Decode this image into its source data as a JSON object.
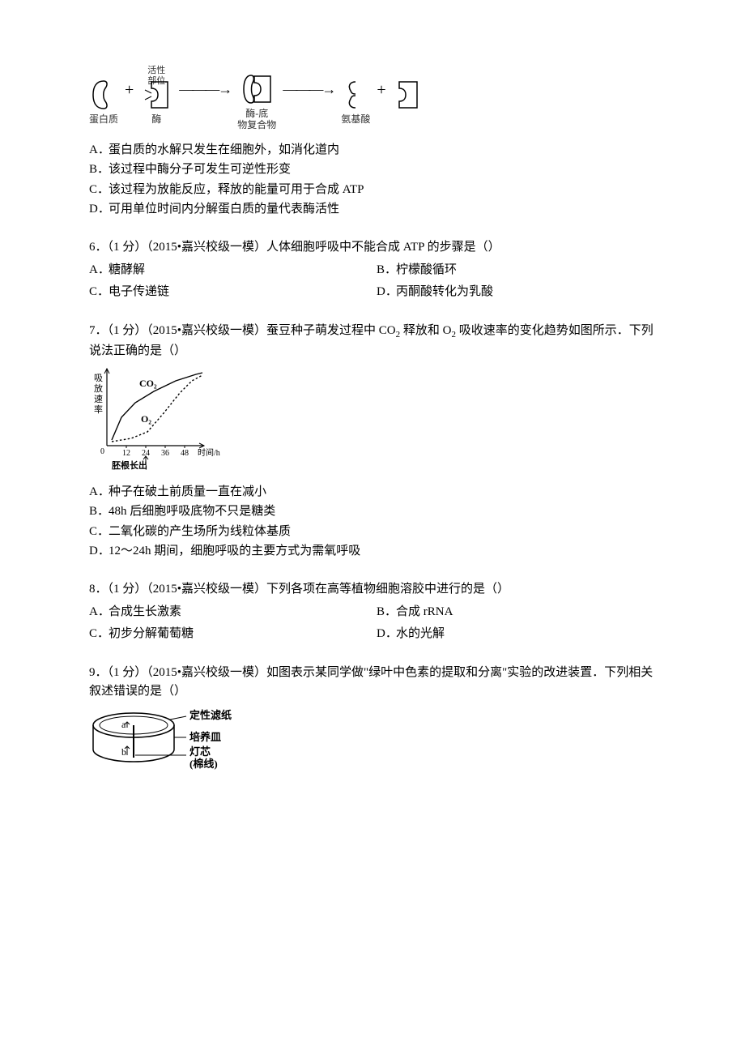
{
  "q5": {
    "diagram": {
      "protein_label": "蛋白质",
      "active_site": "活性\n部位",
      "enzyme_label": "酶",
      "complex_label": "酶-底\n物复合物",
      "aa_label": "氨基酸",
      "plus": "+",
      "arrow": "→"
    },
    "A": {
      "letter": "A．",
      "text": "蛋白质的水解只发生在细胞外，如消化道内"
    },
    "B": {
      "letter": "B．",
      "text": "该过程中酶分子可发生可逆性形变"
    },
    "C": {
      "letter": "C．",
      "text": "该过程为放能反应，释放的能量可用于合成 ATP"
    },
    "D": {
      "letter": "D．",
      "text": "可用单位时间内分解蛋白质的量代表酶活性"
    }
  },
  "q6": {
    "text": "6．（1 分）（2015•嘉兴校级一模）人体细胞呼吸中不能合成 ATP 的步骤是（）",
    "A": {
      "letter": "A．",
      "text": "糖酵解"
    },
    "B": {
      "letter": "B．",
      "text": "柠檬酸循环"
    },
    "C": {
      "letter": "C．",
      "text": "电子传递链"
    },
    "D": {
      "letter": "D．",
      "text": "丙酮酸转化为乳酸"
    }
  },
  "q7": {
    "text_pre": "7．（1 分）（2015•嘉兴校级一模）蚕豆种子萌发过程中 CO",
    "sub1": "2",
    "text_mid": " 释放和 O",
    "sub2": "2",
    "text_post": " 吸收速率的变化趋势如图所示．下列说法正确的是（）",
    "chart": {
      "y_label": "吸放速率",
      "x_label": "时间/h",
      "x_ticks": [
        "12",
        "24",
        "36",
        "48"
      ],
      "co2_label": "CO₂",
      "o2_label": "O₂",
      "note": "胚根长出",
      "background": "#ffffff",
      "line_color": "#000000",
      "co2_curve": [
        [
          6,
          88
        ],
        [
          18,
          60
        ],
        [
          35,
          42
        ],
        [
          58,
          28
        ],
        [
          85,
          15
        ],
        [
          110,
          7
        ],
        [
          118,
          5
        ]
      ],
      "o2_curve": [
        [
          6,
          90
        ],
        [
          30,
          86
        ],
        [
          50,
          78
        ],
        [
          70,
          55
        ],
        [
          90,
          30
        ],
        [
          105,
          15
        ],
        [
          118,
          8
        ]
      ]
    },
    "A": {
      "letter": "A．",
      "text": "种子在破土前质量一直在减小"
    },
    "B": {
      "letter": "B．",
      "text": "48h 后细胞呼吸底物不只是糖类"
    },
    "C": {
      "letter": "C．",
      "text": "二氧化碳的产生场所为线粒体基质"
    },
    "D": {
      "letter": "D．",
      "text": "12～24h 期间，细胞呼吸的主要方式为需氧呼吸"
    }
  },
  "q8": {
    "text": "8．（1 分）（2015•嘉兴校级一模）下列各项在高等植物细胞溶胶中进行的是（）",
    "A": {
      "letter": "A．",
      "text": "合成生长激素"
    },
    "B": {
      "letter": "B．",
      "text": "合成 rRNA"
    },
    "C": {
      "letter": "C．",
      "text": "初步分解葡萄糖"
    },
    "D": {
      "letter": "D．",
      "text": "水的光解"
    }
  },
  "q9": {
    "text": "9．（1 分）（2015•嘉兴校级一模）如图表示某同学做\"绿叶中色素的提取和分离\"实验的改进装置．下列相关叙述错误的是（）",
    "diagram": {
      "filter_paper": "定性滤纸",
      "dish": "培养皿",
      "wick": "灯芯\n(棉线)",
      "a": "a",
      "b": "b"
    }
  }
}
